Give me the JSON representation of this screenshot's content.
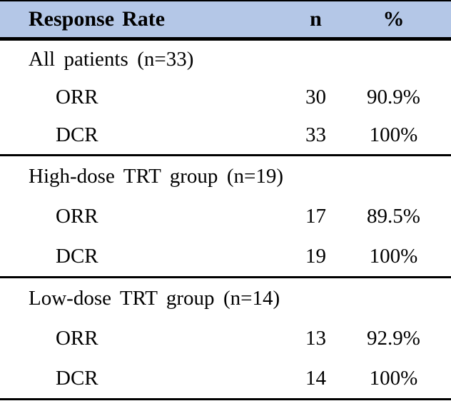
{
  "colors": {
    "header_bg": "#b4c7e7",
    "border": "#000000",
    "text": "#000000",
    "page_bg": "#ffffff"
  },
  "table": {
    "columns": [
      "Response Rate",
      "n",
      "%"
    ],
    "sections": [
      {
        "group_label": "All patients (n=33)",
        "rows": [
          {
            "label": "ORR",
            "n": "30",
            "pct": "90.9%"
          },
          {
            "label": "DCR",
            "n": "33",
            "pct": "100%"
          }
        ]
      },
      {
        "group_label": "High-dose TRT group (n=19)",
        "rows": [
          {
            "label": "ORR",
            "n": "17",
            "pct": "89.5%"
          },
          {
            "label": "DCR",
            "n": "19",
            "pct": "100%"
          }
        ]
      },
      {
        "group_label": "Low-dose TRT group (n=14)",
        "rows": [
          {
            "label": "ORR",
            "n": "13",
            "pct": "92.9%"
          },
          {
            "label": "DCR",
            "n": "14",
            "pct": "100%"
          }
        ]
      }
    ]
  }
}
